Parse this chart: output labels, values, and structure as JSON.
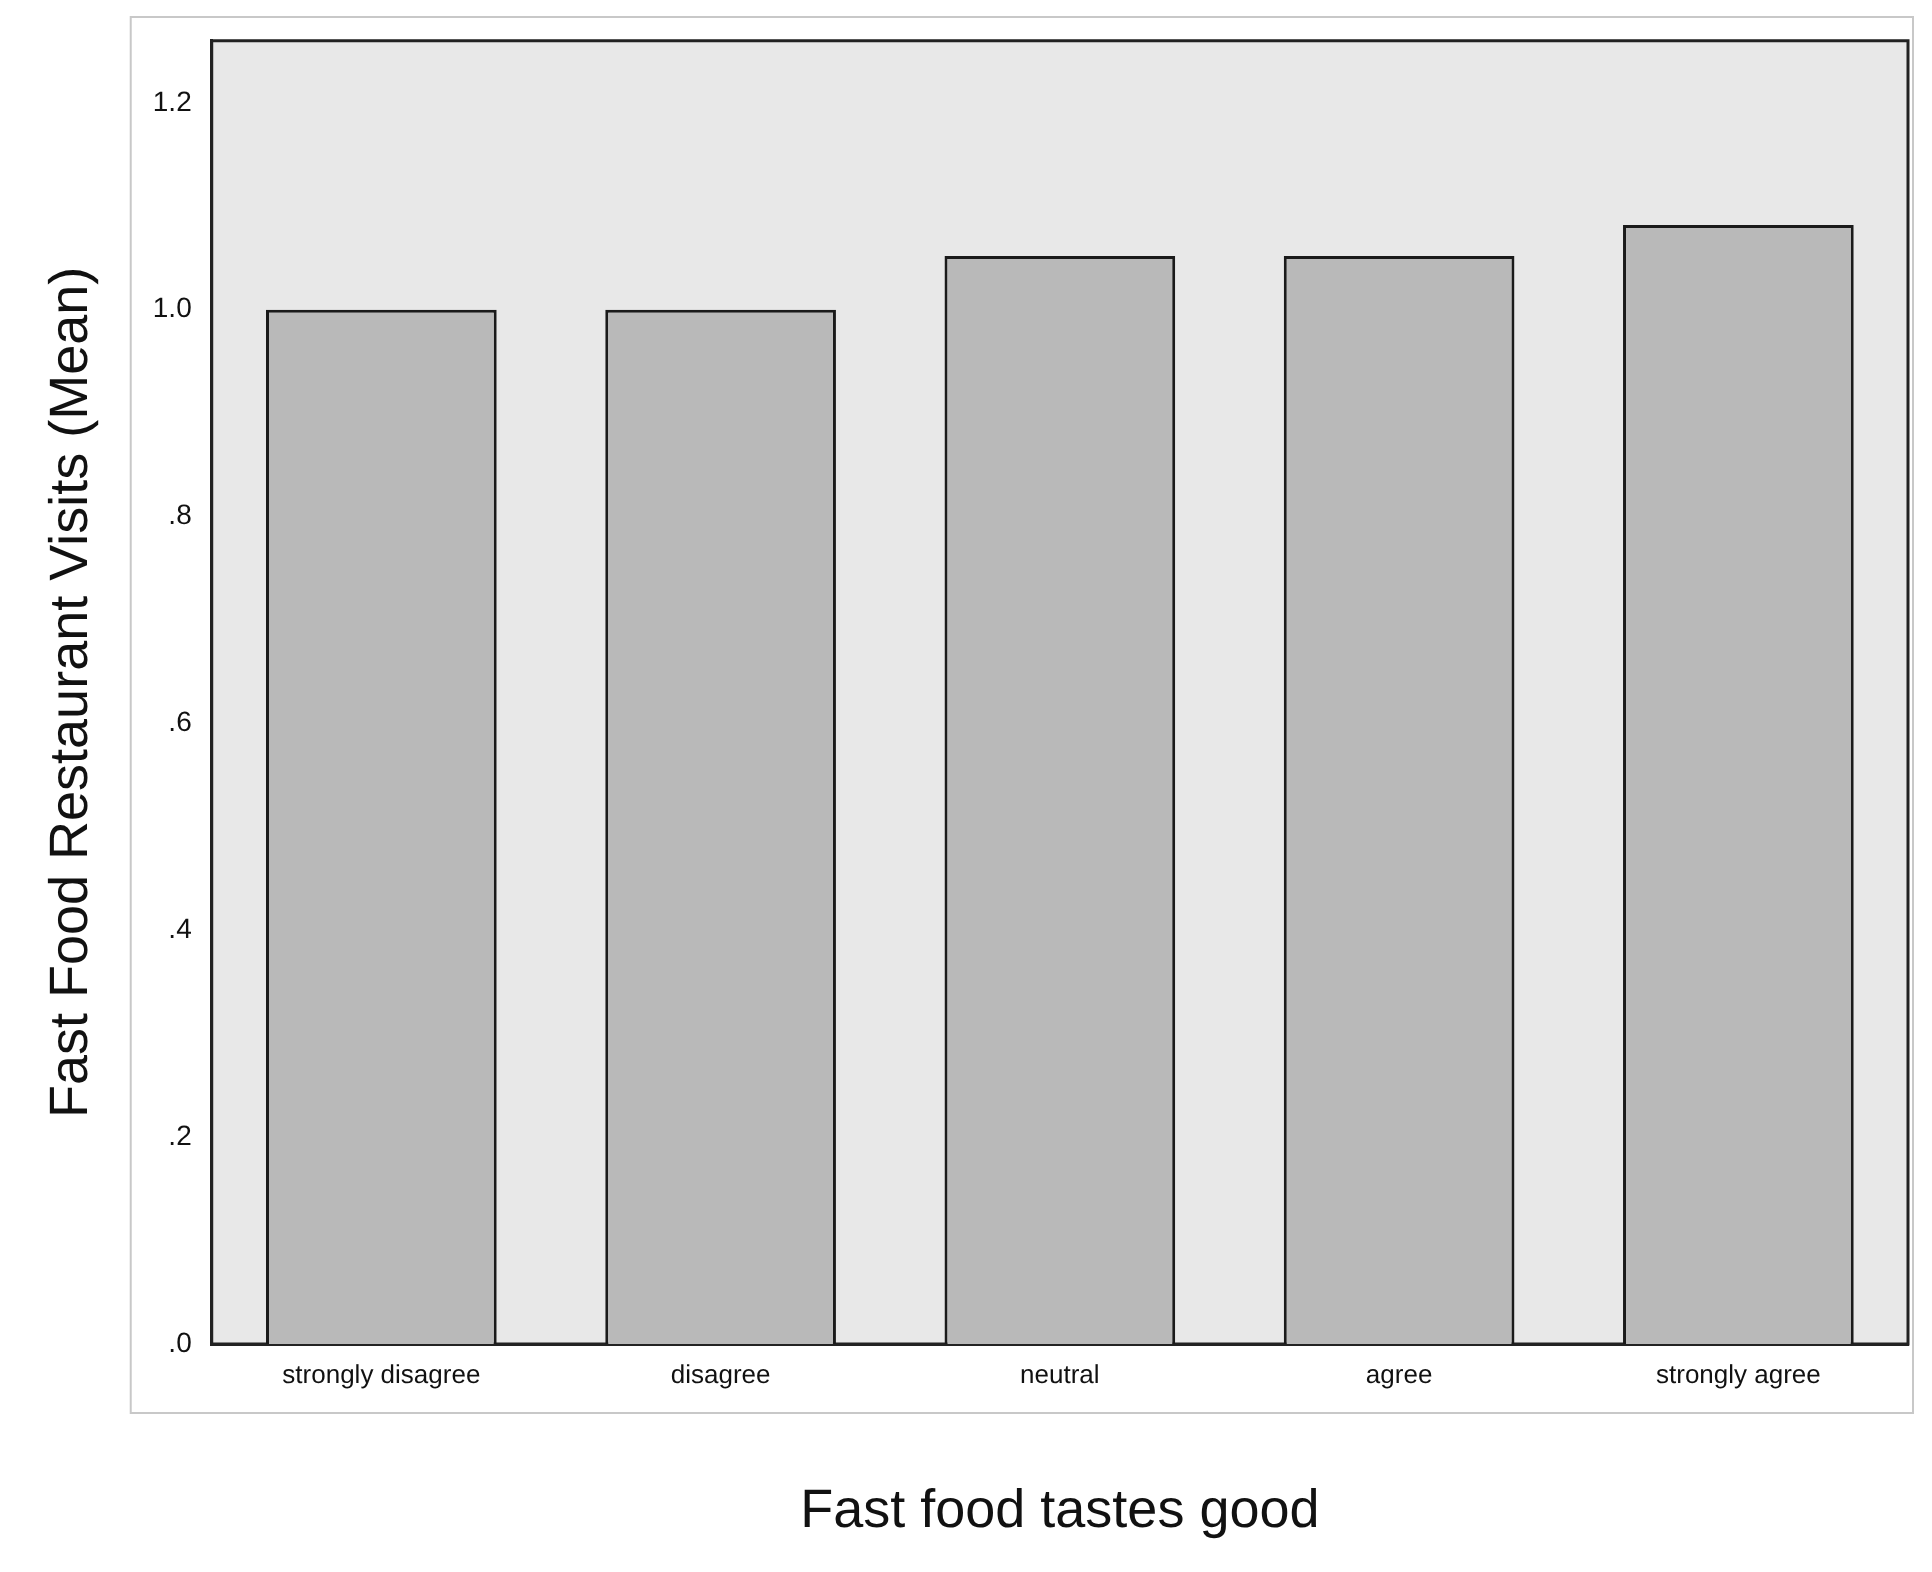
{
  "chart_data": {
    "type": "bar",
    "xlabel": "Fast food tastes good",
    "ylabel": "Fast Food Restaurant Visits (Mean)",
    "categories": [
      "strongly disagree",
      "disagree",
      "neutral",
      "agree",
      "strongly agree"
    ],
    "values": [
      1.0,
      1.0,
      1.052,
      1.052,
      1.082
    ],
    "color": "#b9b9b9",
    "ylim": [
      0,
      1.26
    ],
    "yticks": [
      {
        "value": 0,
        "label": ".0"
      },
      {
        "value": 0.2,
        "label": ".2"
      },
      {
        "value": 0.4,
        "label": ".4"
      },
      {
        "value": 0.6,
        "label": ".6"
      },
      {
        "value": 0.8,
        "label": ".8"
      },
      {
        "value": 1.0,
        "label": "1.0"
      },
      {
        "value": 1.2,
        "label": "1.2"
      }
    ],
    "grid": false,
    "legend": false
  }
}
